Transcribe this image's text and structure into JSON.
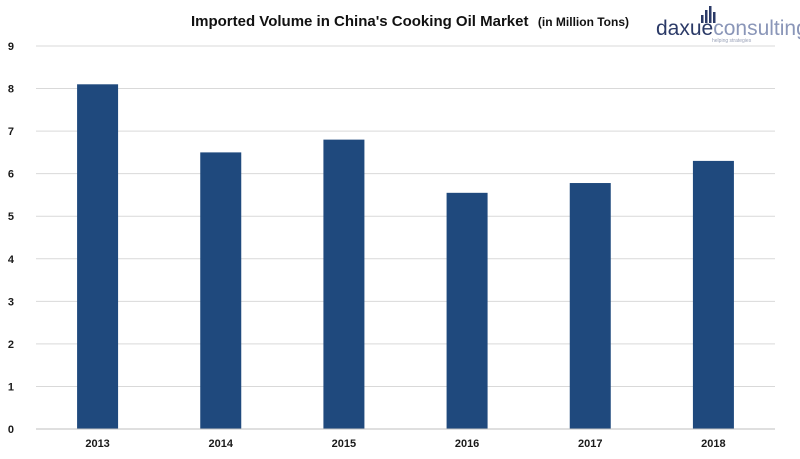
{
  "chart_data": {
    "type": "bar",
    "title": "Imported Volume in China's Cooking Oil Market",
    "subtitle": "(in Million Tons)",
    "categories": [
      "2013",
      "2014",
      "2015",
      "2016",
      "2017",
      "2018"
    ],
    "values": [
      8.1,
      6.5,
      6.8,
      5.55,
      5.78,
      6.3
    ],
    "ylim": [
      0,
      9
    ],
    "yticks": [
      0,
      1,
      2,
      3,
      4,
      5,
      6,
      7,
      8,
      9
    ],
    "xlabel": "",
    "ylabel": "",
    "grid": true,
    "legend": "none",
    "bar_color": "#1f497d",
    "grid_color": "#d9d9d9"
  },
  "logo": {
    "part1": "daxue",
    "part2": "consulting",
    "tagline": "helping strategies",
    "color_dark": "#2b3a67",
    "color_light": "#8a96b8"
  }
}
